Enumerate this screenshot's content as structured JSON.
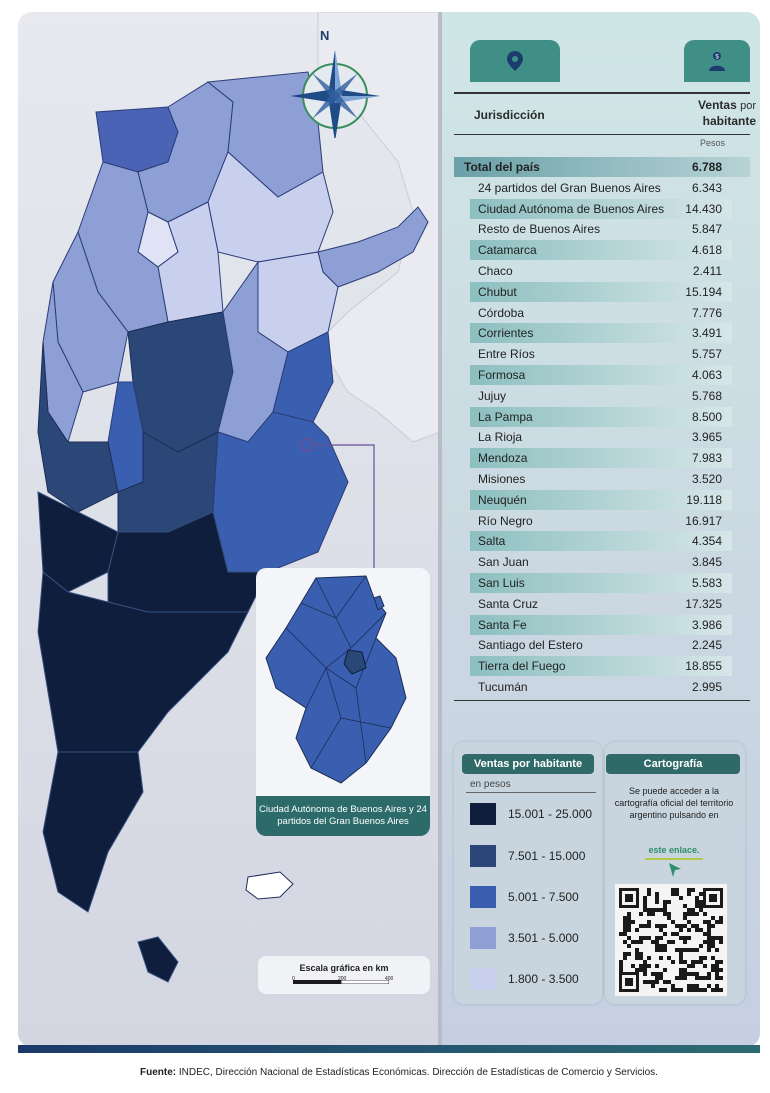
{
  "compass": {
    "north_label": "N"
  },
  "table": {
    "header_jurisdiccion": "Jurisdicción",
    "header_ventas": "Ventas",
    "header_por": "por",
    "header_habitante": "habitante",
    "unit": "Pesos",
    "rows": [
      {
        "name": "Total del país",
        "value": "6.788",
        "band": "#7fb0b3",
        "total": true
      },
      {
        "name": "24 partidos del Gran Buenos Aires",
        "value": "6.343",
        "band": ""
      },
      {
        "name": "Ciudad Autónoma de Buenos Aires",
        "value": "14.430",
        "band": "#8cbfc0"
      },
      {
        "name": "Resto de Buenos Aires",
        "value": "5.847",
        "band": ""
      },
      {
        "name": "Catamarca",
        "value": "4.618",
        "band": "#8cbfc0"
      },
      {
        "name": "Chaco",
        "value": "2.411",
        "band": ""
      },
      {
        "name": "Chubut",
        "value": "15.194",
        "band": "#8cbfc0"
      },
      {
        "name": "Córdoba",
        "value": "7.776",
        "band": ""
      },
      {
        "name": "Corrientes",
        "value": "3.491",
        "band": "#8cbfc0"
      },
      {
        "name": "Entre Ríos",
        "value": "5.757",
        "band": ""
      },
      {
        "name": "Formosa",
        "value": "4.063",
        "band": "#8cbfc0"
      },
      {
        "name": "Jujuy",
        "value": "5.768",
        "band": ""
      },
      {
        "name": "La Pampa",
        "value": "8.500",
        "band": "#8cbfc0"
      },
      {
        "name": "La Rioja",
        "value": "3.965",
        "band": ""
      },
      {
        "name": "Mendoza",
        "value": "7.983",
        "band": "#8cbfc0"
      },
      {
        "name": "Misiones",
        "value": "3.520",
        "band": ""
      },
      {
        "name": "Neuquén",
        "value": "19.118",
        "band": "#8cbfc0"
      },
      {
        "name": "Río Negro",
        "value": "16.917",
        "band": ""
      },
      {
        "name": "Salta",
        "value": "4.354",
        "band": "#8cbfc0"
      },
      {
        "name": "San Juan",
        "value": "3.845",
        "band": ""
      },
      {
        "name": "San Luis",
        "value": "5.583",
        "band": "#8cbfc0"
      },
      {
        "name": "Santa Cruz",
        "value": "17.325",
        "band": ""
      },
      {
        "name": "Santa Fe",
        "value": "3.986",
        "band": "#8cbfc0"
      },
      {
        "name": "Santiago del Estero",
        "value": "2.245",
        "band": ""
      },
      {
        "name": "Tierra del Fuego",
        "value": "18.855",
        "band": "#8cbfc0"
      },
      {
        "name": "Tucumán",
        "value": "2.995",
        "band": ""
      }
    ]
  },
  "legend": {
    "title": "Ventas por habitante",
    "subtitle": "en pesos",
    "classes": [
      {
        "label": "15.001 - 25.000",
        "color": "#0f1e3d"
      },
      {
        "label": "7.501 - 15.000",
        "color": "#2b4778"
      },
      {
        "label": "5.001 - 7.500",
        "color": "#3a5fb0"
      },
      {
        "label": "3.501 - 5.000",
        "color": "#8e9fd6"
      },
      {
        "label": "1.800 - 3.500",
        "color": "#c9d0ee"
      }
    ]
  },
  "cartografia": {
    "title": "Cartografía",
    "text": "Se puede acceder a la cartografía oficial del territorio argentino pulsando en",
    "link": "este enlace."
  },
  "inset": {
    "caption": "Ciudad Autónoma de Buenos Aires y 24 partidos del Gran Buenos Aires"
  },
  "scale": {
    "title": "Escala gráfica en km",
    "ticks": [
      "0",
      "200",
      "400"
    ]
  },
  "source": {
    "label": "Fuente:",
    "text": "INDEC, Dirección Nacional de Estadísticas Económicas. Dirección de Estadísticas de Comercio y Servicios."
  }
}
